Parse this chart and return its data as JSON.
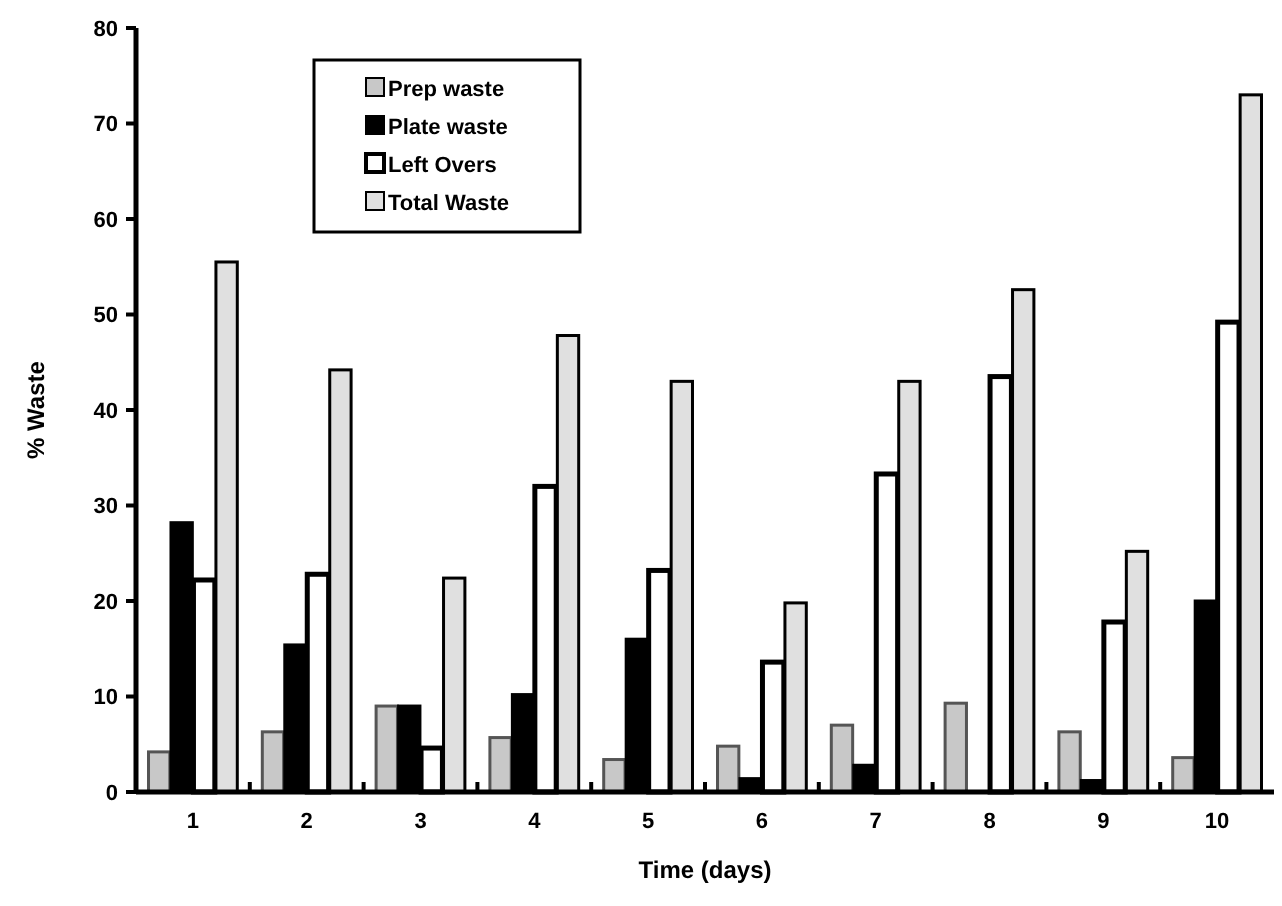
{
  "chart_data": {
    "type": "bar",
    "xlabel": "Time  (days)",
    "ylabel": "% Waste",
    "categories": [
      "1",
      "2",
      "3",
      "4",
      "5",
      "6",
      "7",
      "8",
      "9",
      "10"
    ],
    "series": [
      {
        "name": "Prep waste",
        "color": "#c8c8c8",
        "values": [
          4.2,
          6.3,
          9,
          5.7,
          3.4,
          4.8,
          7,
          9.3,
          6.3,
          3.6
        ]
      },
      {
        "name": "Plate waste",
        "color": "#000000",
        "values": [
          28.2,
          15.4,
          9,
          10.2,
          16,
          1.4,
          2.8,
          0,
          1.2,
          20
        ]
      },
      {
        "name": "Left Overs",
        "color": "#ffffff",
        "values": [
          22.2,
          22.8,
          4.6,
          32,
          23.2,
          13.6,
          33.3,
          43.5,
          17.8,
          49.2
        ]
      },
      {
        "name": "Total Waste",
        "color": "#e0e0e0",
        "values": [
          55.5,
          44.2,
          22.4,
          47.8,
          43,
          19.8,
          43,
          52.6,
          25.2,
          73
        ]
      }
    ],
    "ylim": [
      0,
      80
    ],
    "yticks": [
      0,
      10,
      20,
      30,
      40,
      50,
      60,
      70,
      80
    ],
    "grid": false,
    "legend": "top left"
  }
}
